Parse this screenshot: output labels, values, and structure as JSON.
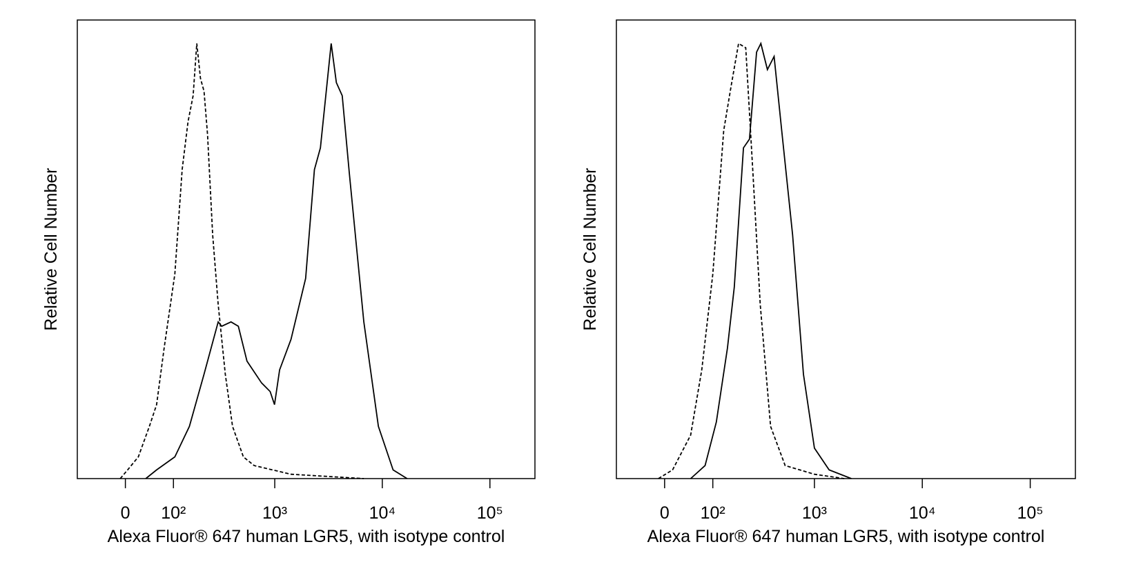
{
  "chart_data": [
    {
      "type": "line",
      "xlabel": "Alexa Fluor® 647 human LGR5, with isotype control",
      "ylabel": "Relative Cell Number",
      "xscale": "biexponential",
      "xlim": [
        -100,
        262000
      ],
      "ylim": [
        0,
        100
      ],
      "xticks": [
        0,
        {
          "value": 100,
          "label": "10²"
        },
        {
          "value": 1000,
          "label": "10³"
        },
        {
          "value": 10000,
          "label": "10⁴"
        },
        {
          "value": 100000,
          "label": "10⁵"
        }
      ],
      "series": [
        {
          "color": "#000000",
          "line_style": "dashed",
          "x": [
            -9,
            4,
            23,
            44,
            59,
            76,
            104,
            126,
            146,
            165,
            180,
            196,
            213,
            231,
            259,
            293,
            343,
            402,
            509,
            642,
            1417,
            6740
          ],
          "values": [
            0,
            2,
            5,
            12,
            17,
            30,
            47,
            71,
            82,
            88,
            100,
            92,
            89,
            79,
            56,
            40,
            24,
            12,
            5,
            3,
            1,
            0
          ]
        },
        {
          "color": "#000000",
          "line_style": "solid",
          "x": [
            37,
            59,
            104,
            151,
            213,
            293,
            317,
            389,
            456,
            550,
            753,
            906,
            995,
            1110,
            1417,
            1940,
            2340,
            2660,
            3100,
            3350,
            3740,
            4240,
            4950,
            6740,
            9200,
            12600,
            17000
          ],
          "values": [
            0,
            2,
            5,
            12,
            24,
            36,
            35,
            36,
            35,
            27,
            22,
            20,
            17,
            25,
            32,
            46,
            71,
            76,
            92,
            100,
            91,
            88,
            70,
            36,
            12,
            2,
            0
          ]
        }
      ]
    },
    {
      "type": "line",
      "xlabel": "Alexa Fluor® 647 human LGR5, with isotype control",
      "ylabel": "Relative Cell Number",
      "xscale": "biexponential",
      "xlim": [
        -100,
        262000
      ],
      "ylim": [
        0,
        100
      ],
      "xticks": [
        0,
        {
          "value": 100,
          "label": "10²"
        },
        {
          "value": 1000,
          "label": "10³"
        },
        {
          "value": 10000,
          "label": "10⁴"
        },
        {
          "value": 100000,
          "label": "10⁵"
        }
      ],
      "series": [
        {
          "color": "#000000",
          "line_style": "dashed",
          "x": [
            -11,
            14,
            48,
            72,
            100,
            133,
            159,
            190,
            224,
            264,
            310,
            389,
            533,
            1000,
            1890
          ],
          "values": [
            0,
            2,
            10,
            25,
            47,
            80,
            90,
            100,
            99,
            70,
            40,
            12,
            3,
            1,
            0
          ]
        },
        {
          "color": "#000000",
          "line_style": "solid",
          "x": [
            48,
            80,
            110,
            146,
            172,
            213,
            244,
            286,
            314,
            363,
            420,
            495,
            626,
            790,
            1000,
            1370,
            2200
          ],
          "values": [
            0,
            3,
            13,
            30,
            44,
            76,
            78,
            98,
            100,
            94,
            97,
            80,
            56,
            24,
            7,
            2,
            0
          ]
        }
      ]
    }
  ]
}
